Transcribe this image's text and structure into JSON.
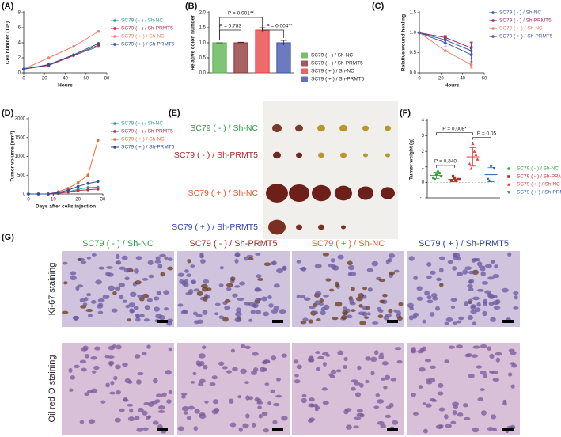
{
  "chart_data": [
    {
      "type": "line",
      "label": "(A)",
      "x": [
        0,
        24,
        48,
        72
      ],
      "xlim": [
        0,
        80
      ],
      "xticks": [
        0,
        20,
        40,
        60,
        80
      ],
      "ylim": [
        0,
        8
      ],
      "yticks": [
        0,
        2,
        4,
        6,
        8
      ],
      "x_label": "Hours",
      "y_label": "Cell number (10⁴)",
      "series": [
        {
          "name": "SC79 ( - ) / Sh-NC",
          "color": "#2a9d9a",
          "values": [
            0.5,
            1.0,
            2.3,
            3.5
          ]
        },
        {
          "name": "SC79 ( - ) / Sh-PRMT5",
          "color": "#b5304f",
          "values": [
            0.5,
            1.0,
            2.3,
            3.7
          ]
        },
        {
          "name": "SC79 ( + ) / Sh-NC",
          "color": "#f08070",
          "values": [
            0.5,
            2.0,
            3.5,
            5.5
          ]
        },
        {
          "name": "SC79 ( + ) / Sh-PRMT5",
          "color": "#2c4f9e",
          "values": [
            0.5,
            1.1,
            2.4,
            3.9
          ]
        }
      ]
    },
    {
      "type": "bar",
      "label": "(B)",
      "ylim": [
        0,
        2
      ],
      "yticks": [
        {
          "value": 0,
          "label": "0.0"
        },
        0.5,
        {
          "value": 1,
          "label": "1.0"
        },
        1.5,
        {
          "value": 2,
          "label": "2.0"
        }
      ],
      "y_label": "Relative colon number",
      "annotations": [
        "P = 0.783",
        "P = 0.001**",
        "P = 0.004**"
      ],
      "series": [
        {
          "name": "SC79 ( - ) / Sh-NC",
          "color": "#55b04a",
          "values": [
            1.0
          ],
          "errors": [
            0.0
          ]
        },
        {
          "name": "SC79 ( - ) / Sh-PRMT5",
          "color": "#8a2f2f",
          "values": [
            1.0
          ],
          "errors": [
            0.02
          ]
        },
        {
          "name": "SC79 ( + ) / Sh-NC",
          "color": "#e8393c",
          "values": [
            1.42
          ],
          "errors": [
            0.08
          ]
        },
        {
          "name": "SC79 ( + ) / Sh-PRMT5",
          "color": "#3b4fa8",
          "values": [
            1.0
          ],
          "errors": [
            0.08
          ]
        }
      ]
    },
    {
      "type": "line",
      "label": "(C)",
      "x": [
        0,
        24,
        48
      ],
      "xlim": [
        0,
        60
      ],
      "xticks": [
        0,
        20,
        40,
        60
      ],
      "ylim": [
        0,
        1.5
      ],
      "yticks": [
        {
          "value": 0,
          "label": "0.0"
        },
        0.5,
        {
          "value": 1,
          "label": "1.0"
        },
        1.5
      ],
      "x_label": "Hours",
      "y_label": "Relative wound healing",
      "series": [
        {
          "name": "SC79 ( - ) / Sh-NC",
          "color": "#3a5aa8",
          "values": [
            1.0,
            0.82,
            0.55
          ],
          "errors": [
            0,
            0.08,
            0.2
          ]
        },
        {
          "name": "SC79 ( - ) / Sh-PRMT5",
          "color": "#a02a5a",
          "values": [
            1.0,
            0.88,
            0.62
          ],
          "errors": [
            0,
            0.05,
            0.15
          ]
        },
        {
          "name": "SC79 ( + ) / Sh-NC",
          "color": "#f08070",
          "values": [
            1.0,
            0.55,
            0.2
          ],
          "errors": [
            0,
            0.02,
            0.08
          ]
        },
        {
          "name": "SC79 ( + ) / Sh-PRMT5",
          "color": "#4a5aa0",
          "values": [
            1.0,
            0.75,
            0.45
          ],
          "errors": [
            0,
            0.1,
            0.2
          ]
        }
      ]
    },
    {
      "type": "line",
      "label": "(D)",
      "x": [
        0,
        4,
        8,
        12,
        16,
        20,
        24,
        28
      ],
      "xlim": [
        0,
        30
      ],
      "xticks": [
        0,
        10,
        20,
        30
      ],
      "ylim": [
        0,
        2000
      ],
      "yticks": [
        0,
        500,
        1000,
        1500,
        2000
      ],
      "x_label": "Days after cells injection",
      "y_label": "Tumor volume (mm³)",
      "series": [
        {
          "name": "SC79 ( - ) / Sh-NC",
          "color": "#2a9d9a",
          "values": [
            0,
            0,
            0,
            20,
            60,
            120,
            170,
            180
          ]
        },
        {
          "name": "SC79 ( - ) / Sh-PRMT5",
          "color": "#b5304f",
          "values": [
            0,
            0,
            0,
            15,
            50,
            90,
            110,
            130
          ]
        },
        {
          "name": "SC79 ( + ) / Sh-NC",
          "color": "#f06a30",
          "values": [
            0,
            0,
            0,
            60,
            150,
            300,
            500,
            1430
          ]
        },
        {
          "name": "SC79 ( + ) / Sh-PRMT5",
          "color": "#2c4f9e",
          "values": [
            0,
            0,
            0,
            40,
            100,
            200,
            280,
            330
          ]
        }
      ]
    },
    {
      "type": "dot",
      "label": "(F)",
      "ylim": [
        -1,
        4
      ],
      "yticks": [
        -1,
        0,
        1,
        2,
        3,
        4
      ],
      "y_label": "Tumor weight (g)",
      "annotations": [
        "P = 0.340",
        "P = 0.008*",
        "P = 0.05"
      ],
      "series": [
        {
          "name": "SC79 ( - ) / Sh-NC",
          "color": "#3aa040",
          "marker": "circle",
          "values": [
            0.3,
            0.5,
            0.6,
            0.2,
            0.7,
            0.4
          ],
          "mean": 0.45,
          "sd": 0.2
        },
        {
          "name": "SC79 ( - ) / Sh-PRMT5",
          "color": "#b5302a",
          "marker": "square",
          "values": [
            0.1,
            0.3,
            0.2,
            0.4,
            0.1,
            0.2
          ],
          "mean": 0.2,
          "sd": 0.15
        },
        {
          "name": "SC79 ( + ) / Sh-NC",
          "color": "#e83a3a",
          "marker": "triangle",
          "values": [
            1.2,
            2.5,
            1.8,
            0.9,
            2.0,
            1.5
          ],
          "mean": 1.65,
          "sd": 0.6
        },
        {
          "name": "SC79 ( + ) / Sh-PRMT5",
          "color": "#2a60b0",
          "marker": "triangle-down",
          "values": [
            0.2,
            1.0,
            0.9,
            0.1
          ],
          "mean": 0.5,
          "sd": 0.45
        }
      ]
    }
  ],
  "panel_e": {
    "label": "(E)",
    "rows": [
      {
        "text": "SC79 ( - ) / Sh-NC",
        "color": "#2e9d4a"
      },
      {
        "text": "SC79 ( - ) / Sh-PRMT5",
        "color": "#a62a2a"
      },
      {
        "text": "SC79 ( + ) / Sh-NC",
        "color": "#f0582a"
      },
      {
        "text": "SC79 ( + ) / Sh-PRMT5",
        "color": "#3040b0"
      }
    ]
  },
  "panel_g": {
    "label": "(G)",
    "columns": [
      {
        "text": "SC79 ( - ) / Sh-NC",
        "color": "#2e9d4a"
      },
      {
        "text": "SC79 ( - ) / Sh-PRMT5",
        "color": "#a62a2a"
      },
      {
        "text": "SC79 ( + ) / Sh-NC",
        "color": "#f0582a"
      },
      {
        "text": "SC79 ( + ) / Sh-PRMT5",
        "color": "#3040b0"
      }
    ],
    "rows": [
      "Ki-67 staining",
      "Oil red O staining"
    ]
  }
}
